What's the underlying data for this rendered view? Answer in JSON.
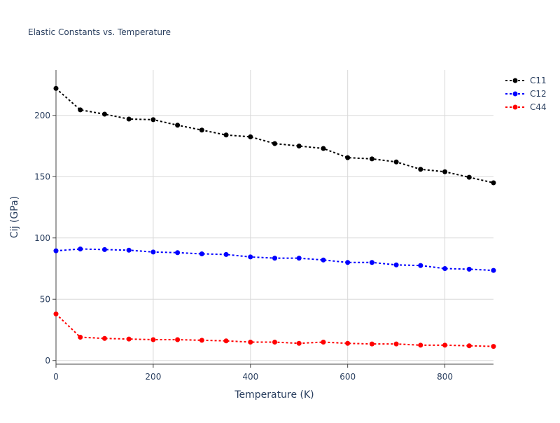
{
  "chart_data": {
    "type": "line",
    "title": "Elastic Constants vs. Temperature",
    "xlabel": "Temperature (K)",
    "ylabel": "Cij (GPa)",
    "xlim": [
      0,
      900
    ],
    "ylim": [
      -3,
      237
    ],
    "x_ticks": [
      0,
      200,
      400,
      600,
      800
    ],
    "y_ticks": [
      0,
      50,
      100,
      150,
      200
    ],
    "grid": true,
    "legend_position": "top-right",
    "x": [
      0,
      50,
      100,
      150,
      200,
      250,
      300,
      350,
      400,
      450,
      500,
      550,
      600,
      650,
      700,
      750,
      800,
      850,
      900
    ],
    "series": [
      {
        "name": "C11",
        "color": "#000000",
        "line_style": "dotted",
        "marker": "circle",
        "values": [
          222,
          204.5,
          201,
          197,
          196.5,
          192,
          188,
          184,
          182.5,
          177,
          175,
          173,
          165.5,
          164.5,
          162,
          156,
          154,
          149.5,
          145
        ]
      },
      {
        "name": "C12",
        "color": "#0000ff",
        "line_style": "dotted",
        "marker": "circle",
        "values": [
          89.5,
          91,
          90.5,
          90,
          88.5,
          88,
          87,
          86.5,
          84.5,
          83.5,
          83.5,
          82,
          80,
          80,
          78,
          77.5,
          75,
          74.5,
          73.5
        ]
      },
      {
        "name": "C44",
        "color": "#ff0000",
        "line_style": "dotted",
        "marker": "circle",
        "values": [
          38,
          19,
          18,
          17.5,
          17,
          17,
          16.5,
          16,
          15,
          15,
          14,
          15,
          14,
          13.5,
          13.5,
          12.5,
          12.5,
          12,
          11.5
        ]
      }
    ]
  },
  "colors": {
    "text": "#2a3f5f",
    "grid": "#d9d9d9",
    "axis": "#444444"
  }
}
